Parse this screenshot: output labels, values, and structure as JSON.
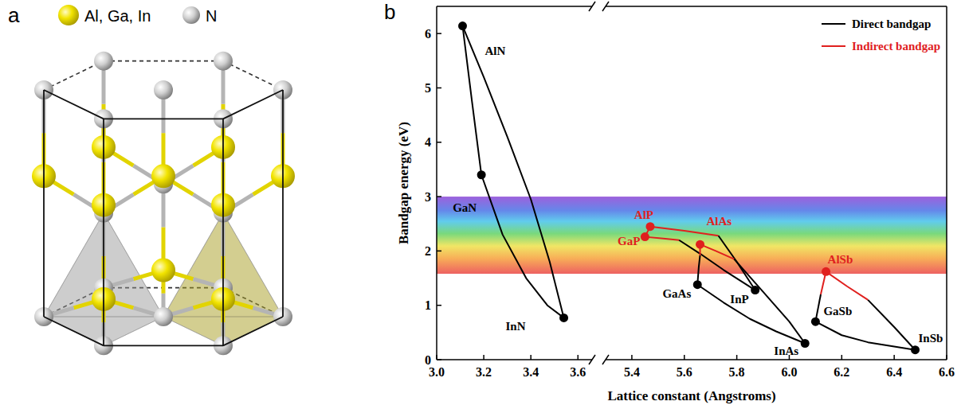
{
  "panel_a": {
    "label": "a",
    "legend": [
      {
        "label": "Al, Ga, In"
      },
      {
        "label": "N"
      }
    ]
  },
  "panel_b_label": "b",
  "chart_data": [
    {
      "type": "line",
      "y_label": "Bandgap energy (eV)",
      "xlim": [
        3.0,
        3.66
      ],
      "ylim": [
        0,
        6.5
      ],
      "xticks": [
        {
          "value": 3.0,
          "label": "3.0"
        },
        3.2,
        3.4,
        3.6
      ],
      "yticks": [
        0,
        1,
        2,
        3,
        4,
        5,
        6
      ],
      "spectrum_band": [
        1.58,
        3.0
      ],
      "series": [
        {
          "color": "#000000",
          "x": [
            3.11,
            3.15,
            3.19
          ],
          "values": [
            6.14,
            4.75,
            3.4
          ]
        },
        {
          "color": "#000000",
          "x": [
            3.19,
            3.28,
            3.38,
            3.47,
            3.54
          ],
          "values": [
            3.4,
            2.3,
            1.5,
            1.0,
            0.77
          ]
        },
        {
          "color": "#000000",
          "x": [
            3.11,
            3.2,
            3.3,
            3.4,
            3.48,
            3.54
          ],
          "values": [
            6.14,
            5.2,
            4.1,
            2.95,
            1.8,
            0.77
          ]
        },
        {
          "type": "scatter",
          "marker": "circle",
          "colors": [
            "#000000",
            "#000000",
            "#000000"
          ],
          "x": [
            3.11,
            3.19,
            3.54
          ],
          "values": [
            6.14,
            3.4,
            0.77
          ],
          "point_labels": [
            "AlN",
            "GaN",
            "InN"
          ]
        }
      ]
    },
    {
      "type": "line",
      "x_label": "Lattice constant (Angstroms)",
      "xlim": [
        5.3,
        6.6
      ],
      "ylim": [
        0,
        6.5
      ],
      "tick_labels": "x",
      "xticks": [
        5.4,
        5.6,
        5.8,
        {
          "value": 6.0,
          "label": "6.0"
        },
        6.2,
        6.4,
        6.6
      ],
      "legend": "upper right",
      "legend_items": [
        {
          "name": "Direct bandgap",
          "color": "#000000"
        },
        {
          "name": "Indirect bandgap",
          "color": "#e0201e"
        }
      ],
      "series": [
        {
          "color": "#e0201e",
          "x": [
            5.45,
            5.47
          ],
          "values": [
            2.26,
            2.45
          ]
        },
        {
          "color": "#e0201e",
          "x": [
            5.47,
            5.6,
            5.73
          ],
          "values": [
            2.45,
            2.37,
            2.28
          ]
        },
        {
          "color": "#000000",
          "x": [
            5.73,
            5.8,
            5.87
          ],
          "values": [
            2.28,
            1.8,
            1.28
          ]
        },
        {
          "color": "#e0201e",
          "x": [
            5.45,
            5.52,
            5.58
          ],
          "values": [
            2.26,
            2.23,
            2.2
          ]
        },
        {
          "color": "#000000",
          "x": [
            5.58,
            5.66,
            5.75,
            5.87
          ],
          "values": [
            2.2,
            1.95,
            1.65,
            1.28
          ]
        },
        {
          "color": "#000000",
          "x": [
            5.65,
            5.655,
            5.66
          ],
          "values": [
            1.38,
            1.7,
            1.92
          ]
        },
        {
          "color": "#e0201e",
          "x": [
            5.66,
            5.66
          ],
          "values": [
            1.92,
            2.12
          ]
        },
        {
          "color": "#e0201e",
          "x": [
            5.66,
            5.72,
            5.79
          ],
          "values": [
            2.12,
            2.0,
            1.85
          ]
        },
        {
          "color": "#000000",
          "x": [
            5.79,
            5.9,
            6.0,
            6.06
          ],
          "values": [
            1.85,
            1.25,
            0.7,
            0.3
          ]
        },
        {
          "color": "#000000",
          "x": [
            5.65,
            5.75,
            5.85,
            5.95,
            6.06
          ],
          "values": [
            1.38,
            1.05,
            0.75,
            0.52,
            0.3
          ]
        },
        {
          "color": "#e0201e",
          "x": [
            6.14,
            6.12
          ],
          "values": [
            1.62,
            1.2
          ]
        },
        {
          "color": "#000000",
          "x": [
            6.12,
            6.1
          ],
          "values": [
            1.2,
            0.7
          ]
        },
        {
          "color": "#e0201e",
          "x": [
            6.14,
            6.22,
            6.3
          ],
          "values": [
            1.62,
            1.35,
            1.1
          ]
        },
        {
          "color": "#000000",
          "x": [
            6.3,
            6.4,
            6.48
          ],
          "values": [
            1.1,
            0.6,
            0.18
          ]
        },
        {
          "color": "#000000",
          "x": [
            6.1,
            6.2,
            6.3,
            6.4,
            6.48
          ],
          "values": [
            0.7,
            0.45,
            0.32,
            0.24,
            0.18
          ]
        },
        {
          "type": "scatter",
          "marker": "circle",
          "colors": [
            "#e0201e",
            "#e0201e",
            "#e0201e",
            "#000000",
            "#000000",
            "#000000",
            "#e0201e",
            "#000000",
            "#000000"
          ],
          "x": [
            5.45,
            5.47,
            5.66,
            5.65,
            5.87,
            6.06,
            6.14,
            6.1,
            6.48
          ],
          "values": [
            2.26,
            2.45,
            2.12,
            1.38,
            1.28,
            0.3,
            1.62,
            0.7,
            0.18
          ],
          "point_labels": [
            "GaP",
            "AlP",
            "AlAs",
            "GaAs",
            "InP",
            "InAs",
            "AlSb",
            "GaSb",
            "InSb"
          ]
        }
      ]
    }
  ]
}
